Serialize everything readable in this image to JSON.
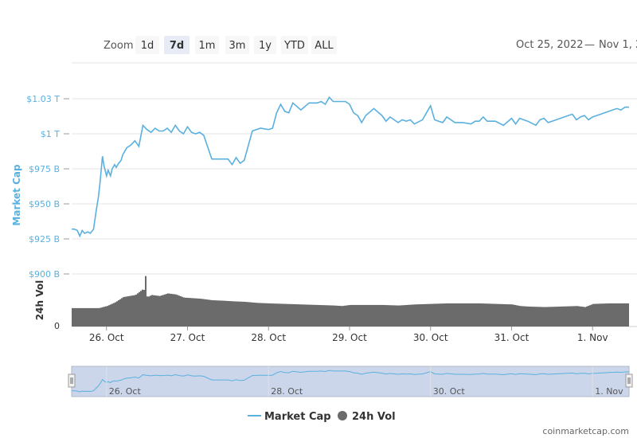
{
  "toolbar": {
    "zoom_label": "Zoom",
    "zoom_buttons": [
      "1d",
      "7d",
      "1m",
      "3m",
      "1y",
      "YTD",
      "ALL"
    ],
    "zoom_selected": "7d",
    "date_from": "Oct 25, 2022",
    "date_sep": "—",
    "date_to": "Nov 1, 2"
  },
  "footer": {
    "watermark": "coinmarketcap.com"
  },
  "colors": {
    "market_cap_line": "#5ab0de",
    "volume_bars": "#6b6b6b",
    "navigator_fill": "#ccd6eb",
    "grid": "#e6e6e6",
    "zoom_selected_bg": "#e6ebf5",
    "zoom_bg": "#f7f7f7"
  },
  "chart_data": {
    "type": "line",
    "ylabel": "Market Cap",
    "ylabel2": "24h Vol",
    "y_ticks": [
      "$1.03 T",
      "$1 T",
      "$975 B",
      "$950 B",
      "$925 B",
      "$900 B"
    ],
    "y_tick_values": [
      1025,
      1000,
      975,
      950,
      925,
      900
    ],
    "ylim": [
      900,
      1025
    ],
    "vol_ticks": [
      "0"
    ],
    "x_ticks": [
      "26. Oct",
      "27. Oct",
      "28. Oct",
      "29. Oct",
      "30. Oct",
      "31. Oct",
      "1. Nov"
    ],
    "x_tick_values": [
      1,
      2,
      3,
      4,
      5,
      6,
      7
    ],
    "xlim": [
      0.57,
      7.45
    ],
    "navigator_ticks": [
      "26. Oct",
      "28. Oct",
      "30. Oct",
      "1. Nov"
    ],
    "navigator_tick_values": [
      1,
      3,
      5,
      7
    ],
    "legend": [
      "Market Cap",
      "24h Vol"
    ],
    "legend_position": "bottom-center",
    "series": [
      {
        "name": "Market Cap",
        "x": [
          0.57,
          0.6,
          0.64,
          0.67,
          0.7,
          0.73,
          0.77,
          0.8,
          0.84,
          0.87,
          0.9,
          0.92,
          0.95,
          0.97,
          1.0,
          1.02,
          1.05,
          1.07,
          1.1,
          1.12,
          1.15,
          1.18,
          1.2,
          1.25,
          1.3,
          1.35,
          1.4,
          1.45,
          1.5,
          1.55,
          1.6,
          1.65,
          1.7,
          1.75,
          1.8,
          1.85,
          1.9,
          1.95,
          2.0,
          2.05,
          2.1,
          2.15,
          2.2,
          2.3,
          2.4,
          2.5,
          2.55,
          2.6,
          2.65,
          2.7,
          2.8,
          2.9,
          3.0,
          3.05,
          3.1,
          3.15,
          3.2,
          3.25,
          3.3,
          3.4,
          3.5,
          3.6,
          3.65,
          3.7,
          3.75,
          3.8,
          3.85,
          3.9,
          3.95,
          4.0,
          4.05,
          4.1,
          4.15,
          4.2,
          4.3,
          4.4,
          4.45,
          4.5,
          4.55,
          4.6,
          4.65,
          4.7,
          4.75,
          4.8,
          4.9,
          5.0,
          5.05,
          5.1,
          5.15,
          5.2,
          5.3,
          5.4,
          5.5,
          5.55,
          5.6,
          5.65,
          5.7,
          5.8,
          5.9,
          6.0,
          6.05,
          6.1,
          6.2,
          6.3,
          6.35,
          6.4,
          6.45,
          6.5,
          6.6,
          6.7,
          6.75,
          6.8,
          6.85,
          6.9,
          6.95,
          7.0,
          7.05,
          7.1,
          7.2,
          7.3,
          7.35,
          7.4,
          7.45
        ],
        "y": [
          932,
          932,
          931,
          927,
          931,
          929,
          930,
          929,
          932,
          944,
          955,
          965,
          984,
          977,
          970,
          974,
          970,
          975,
          978,
          976,
          979,
          981,
          985,
          990,
          992,
          995,
          991,
          1006,
          1003,
          1001,
          1004,
          1002,
          1002,
          1004,
          1001,
          1006,
          1002,
          1000,
          1005,
          1001,
          1000,
          1001,
          999,
          982,
          982,
          982,
          978,
          983,
          979,
          981,
          1002,
          1004,
          1003,
          1004,
          1015,
          1021,
          1016,
          1015,
          1022,
          1017,
          1022,
          1022,
          1023,
          1021,
          1026,
          1023,
          1023,
          1023,
          1023,
          1021,
          1015,
          1013,
          1008,
          1013,
          1018,
          1013,
          1009,
          1012,
          1010,
          1008,
          1010,
          1009,
          1010,
          1007,
          1010,
          1020,
          1010,
          1009,
          1008,
          1012,
          1008,
          1008,
          1007,
          1009,
          1009,
          1012,
          1009,
          1009,
          1006,
          1011,
          1007,
          1011,
          1009,
          1006,
          1010,
          1011,
          1008,
          1009,
          1011,
          1013,
          1014,
          1010,
          1012,
          1013,
          1010,
          1012,
          1013,
          1014,
          1016,
          1018,
          1017,
          1019,
          1019
        ]
      },
      {
        "name": "24h Vol",
        "x": [
          0.57,
          0.9,
          1.0,
          1.1,
          1.2,
          1.35,
          1.45,
          1.47,
          1.5,
          1.55,
          1.65,
          1.75,
          1.85,
          1.95,
          2.05,
          2.15,
          2.3,
          2.45,
          2.55,
          2.7,
          2.85,
          3.0,
          3.2,
          3.4,
          3.6,
          3.8,
          3.9,
          4.0,
          4.2,
          4.4,
          4.6,
          4.8,
          5.0,
          5.2,
          5.4,
          5.6,
          5.8,
          6.0,
          6.1,
          6.2,
          6.4,
          6.6,
          6.8,
          6.9,
          7.0,
          7.2,
          7.45
        ],
        "y": [
          0.35,
          0.35,
          0.39,
          0.46,
          0.56,
          0.6,
          0.72,
          0.62,
          0.56,
          0.6,
          0.58,
          0.63,
          0.61,
          0.55,
          0.54,
          0.53,
          0.5,
          0.49,
          0.48,
          0.47,
          0.45,
          0.44,
          0.43,
          0.42,
          0.41,
          0.4,
          0.39,
          0.41,
          0.41,
          0.41,
          0.4,
          0.42,
          0.43,
          0.44,
          0.44,
          0.44,
          0.43,
          0.42,
          0.39,
          0.38,
          0.37,
          0.38,
          0.39,
          0.37,
          0.43,
          0.44,
          0.44
        ],
        "spike": {
          "x": 1.47,
          "y": 0.96
        }
      }
    ]
  }
}
